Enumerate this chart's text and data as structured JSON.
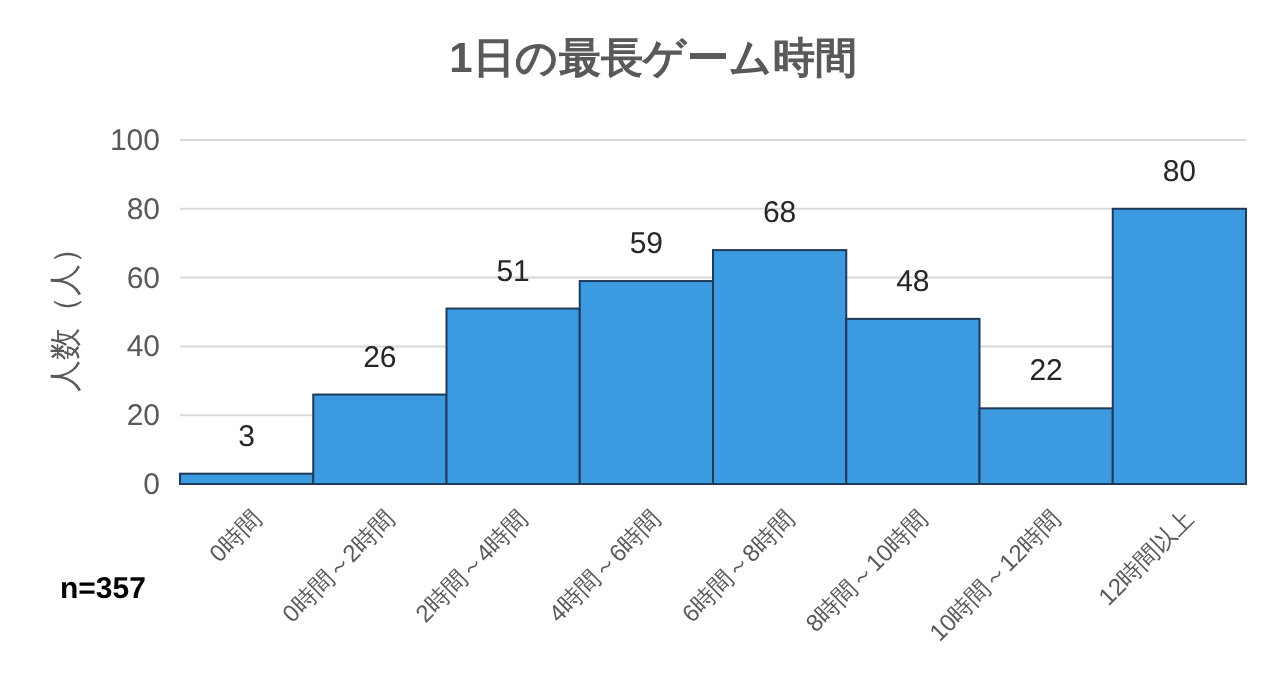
{
  "chart_data": {
    "type": "bar",
    "title": "1日の最長ゲーム時間",
    "ylabel": "人数（人）",
    "categories": [
      "0時間",
      "0時間～2時間",
      "2時間～4時間",
      "4時間～6時間",
      "6時間～8時間",
      "8時間～10時間",
      "10時間～12時間",
      "12時間以上"
    ],
    "values": [
      3,
      26,
      51,
      59,
      68,
      48,
      22,
      80
    ],
    "color": "#3c9be0",
    "ylim": [
      0,
      100
    ],
    "yticks": [
      0,
      20,
      40,
      60,
      80,
      100
    ],
    "grid": "y",
    "data_labels": true,
    "annotations": [
      "n=357"
    ]
  }
}
